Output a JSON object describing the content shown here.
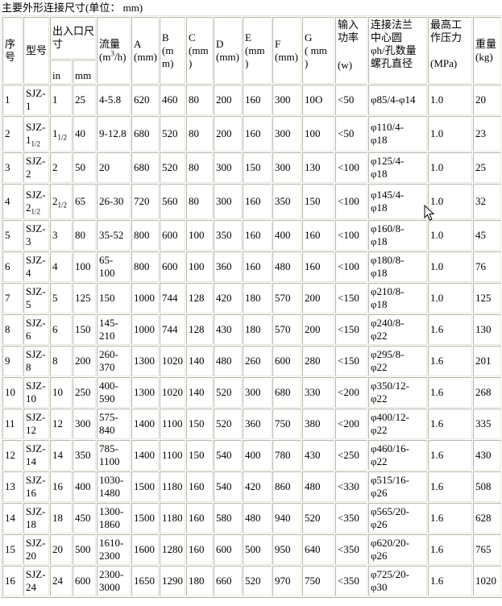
{
  "title": "主要外形连接尺寸(单位： mm)",
  "colors": {
    "border_dark": "#b9b5a7",
    "border_light": "#e8e6de",
    "text": "#000000",
    "background": "#ffffff"
  },
  "header": {
    "col_no": "序号",
    "col_model": "型号",
    "col_inlet": "出入口尺寸",
    "col_in": "in",
    "col_mm": "mm",
    "col_flow_label": "流量",
    "col_flow_unit_pre": "(m",
    "col_flow_unit_sup": "3",
    "col_flow_unit_post": "/h)",
    "col_A_label": "A",
    "col_A_unit": "(mm)",
    "col_B_label": "B",
    "col_B_unit": "(mm)",
    "col_C_label": "C",
    "col_C_unit": "(mm )",
    "col_D_label": "D",
    "col_D_unit": "(mm)",
    "col_E_label": "E",
    "col_E_unit": "(mm )",
    "col_F_label": "F",
    "col_F_unit": "(mm)",
    "col_G_label": "G",
    "col_G_unit": "( mm )",
    "col_power_lines": [
      "输入",
      "功率"
    ],
    "col_power_unit": "(w)",
    "col_flange_lines": [
      "连接法兰",
      "中心圆",
      "φh/孔数量",
      "螺孔直径"
    ],
    "col_pressure_lines": [
      "最高工",
      "作压力"
    ],
    "col_pressure_unit": "(MPa)",
    "col_weight_label": "重量",
    "col_weight_unit": "(kg)"
  },
  "rows": [
    {
      "no": "1",
      "model": "SJZ-1",
      "model_sub": "",
      "inch": "1",
      "inch_sub": "",
      "mm": "25",
      "flow": [
        "4-5.8"
      ],
      "A": "620",
      "B": "460",
      "C": "80",
      "D": "200",
      "E": "160",
      "F": "300",
      "G": "10O",
      "power": "<50",
      "flange": [
        "φ85/4-φ14"
      ],
      "pressure": "1.0",
      "weight": "20"
    },
    {
      "no": "2",
      "model": "SJZ-1",
      "model_sub": "1/2",
      "inch": "1",
      "inch_sub": "1/2",
      "mm": "40",
      "flow": [
        "9-12.8"
      ],
      "A": "680",
      "B": "520",
      "C": "80",
      "D": "200",
      "E": "160",
      "F": "300",
      "G": "100",
      "power": "<50",
      "flange": [
        "φ110/4-",
        "φ18"
      ],
      "pressure": "1.0",
      "weight": "23"
    },
    {
      "no": "3",
      "model": "SJZ-2",
      "model_sub": "",
      "inch": "2",
      "inch_sub": "",
      "mm": "50",
      "flow": [
        "20"
      ],
      "A": "680",
      "B": "520",
      "C": "80",
      "D": "300",
      "E": "150",
      "F": "300",
      "G": "130",
      "power": "<100",
      "flange": [
        "φ125/4-",
        "φ18"
      ],
      "pressure": "1.0",
      "weight": "25"
    },
    {
      "no": "4",
      "model": "SJZ-2",
      "model_sub": "1/2",
      "inch": "2",
      "inch_sub": "1/2",
      "mm": "65",
      "flow": [
        "26-30"
      ],
      "A": "720",
      "B": "560",
      "C": "80",
      "D": "300",
      "E": "160",
      "F": "350",
      "G": "150",
      "power": "<100",
      "flange": [
        "φ145/4-",
        "φ18"
      ],
      "pressure": "1.0",
      "weight": "32"
    },
    {
      "no": "5",
      "model": "SJZ-3",
      "model_sub": "",
      "inch": "3",
      "inch_sub": "",
      "mm": "80",
      "flow": [
        "35-52"
      ],
      "A": "800",
      "B": "600",
      "C": "100",
      "D": "350",
      "E": "160",
      "F": "400",
      "G": "160",
      "power": "<100",
      "flange": [
        "φ160/8-",
        "φ18"
      ],
      "pressure": "1.0",
      "weight": "45"
    },
    {
      "no": "6",
      "model": "SJZ-4",
      "model_sub": "",
      "inch": "4",
      "inch_sub": "",
      "mm": "100",
      "flow": [
        "65-",
        "100"
      ],
      "A": "800",
      "B": "600",
      "C": "100",
      "D": "360",
      "E": "160",
      "F": "480",
      "G": "160",
      "power": "<100",
      "flange": [
        "φ180/8-",
        "φ18"
      ],
      "pressure": "1.0",
      "weight": "76"
    },
    {
      "no": "7",
      "model": "SJZ-5",
      "model_sub": "",
      "inch": "5",
      "inch_sub": "",
      "mm": "125",
      "flow": [
        "150"
      ],
      "A": "1000",
      "B": "744",
      "C": "128",
      "D": "420",
      "E": "180",
      "F": "570",
      "G": "200",
      "power": "<150",
      "flange": [
        "φ210/8-",
        "φ18"
      ],
      "pressure": "1.0",
      "weight": "125"
    },
    {
      "no": "8",
      "model": "SJZ-6",
      "model_sub": "",
      "inch": "6",
      "inch_sub": "",
      "mm": "150",
      "flow": [
        "145-",
        "210"
      ],
      "A": "1000",
      "B": "744",
      "C": "128",
      "D": "430",
      "E": "180",
      "F": "570",
      "G": "200",
      "power": "<150",
      "flange": [
        "φ240/8-",
        "φ22"
      ],
      "pressure": "1.6",
      "weight": "130"
    },
    {
      "no": "9",
      "model": "SJZ-8",
      "model_sub": "",
      "inch": "8",
      "inch_sub": "",
      "mm": "200",
      "flow": [
        "260-",
        "370"
      ],
      "A": "1300",
      "B": "1020",
      "C": "140",
      "D": "480",
      "E": "260",
      "F": "600",
      "G": "280",
      "power": "<150",
      "flange": [
        "φ295/8-",
        "φ22"
      ],
      "pressure": "1.6",
      "weight": "201"
    },
    {
      "no": "10",
      "model": "SJZ-10",
      "model_sub": "",
      "inch": "10",
      "inch_sub": "",
      "mm": "250",
      "flow": [
        "400-",
        "590"
      ],
      "A": "1300",
      "B": "1020",
      "C": "140",
      "D": "520",
      "E": "300",
      "F": "680",
      "G": "330",
      "power": "<200",
      "flange": [
        "φ350/12-",
        "φ22"
      ],
      "pressure": "1.6",
      "weight": "268"
    },
    {
      "no": "11",
      "model": "SJZ-12",
      "model_sub": "",
      "inch": "12",
      "inch_sub": "",
      "mm": "300",
      "flow": [
        "575-",
        "840"
      ],
      "A": "1400",
      "B": "1100",
      "C": "150",
      "D": "520",
      "E": "360",
      "F": "750",
      "G": "380",
      "power": "<200",
      "flange": [
        "φ400/12-",
        "φ22"
      ],
      "pressure": "1.6",
      "weight": "335"
    },
    {
      "no": "12",
      "model": "SJZ-14",
      "model_sub": "",
      "inch": "14",
      "inch_sub": "",
      "mm": "350",
      "flow": [
        "785-",
        "1100"
      ],
      "A": "1400",
      "B": "1100",
      "C": "150",
      "D": "540",
      "E": "400",
      "F": "780",
      "G": "430",
      "power": "<250",
      "flange": [
        "φ460/16-",
        "φ22"
      ],
      "pressure": "1.6",
      "weight": "430"
    },
    {
      "no": "13",
      "model": "SJZ-16",
      "model_sub": "",
      "inch": "16",
      "inch_sub": "",
      "mm": "400",
      "flow": [
        "1030-",
        "1480"
      ],
      "A": "1500",
      "B": "1180",
      "C": "160",
      "D": "540",
      "E": "420",
      "F": "860",
      "G": "480",
      "power": "<330",
      "flange": [
        "φ515/16-",
        "φ26"
      ],
      "pressure": "1.6",
      "weight": "508"
    },
    {
      "no": "14",
      "model": "SJZ-18",
      "model_sub": "",
      "inch": "18",
      "inch_sub": "",
      "mm": "450",
      "flow": [
        "1300-",
        "1860"
      ],
      "A": "1500",
      "B": "1180",
      "C": "160",
      "D": "580",
      "E": "480",
      "F": "940",
      "G": "520",
      "power": "<350",
      "flange": [
        "φ565/20-",
        "φ26"
      ],
      "pressure": "1.6",
      "weight": "628"
    },
    {
      "no": "15",
      "model": "SJZ-20",
      "model_sub": "",
      "inch": "20",
      "inch_sub": "",
      "mm": "500",
      "flow": [
        "1610-",
        "2300"
      ],
      "A": "1600",
      "B": "1280",
      "C": "160",
      "D": "600",
      "E": "500",
      "F": "950",
      "G": "640",
      "power": "<350",
      "flange": [
        "φ620/20-",
        "φ26"
      ],
      "pressure": "1.6",
      "weight": "765"
    },
    {
      "no": "16",
      "model": "SJZ-24",
      "model_sub": "",
      "inch": "24",
      "inch_sub": "",
      "mm": "600",
      "flow": [
        "2300-",
        "3000"
      ],
      "A": "1650",
      "B": "1290",
      "C": "180",
      "D": "660",
      "E": "520",
      "F": "970",
      "G": "750",
      "power": "<350",
      "flange": [
        "φ725/20-",
        "φ30"
      ],
      "pressure": "1.6",
      "weight": "1020"
    }
  ]
}
